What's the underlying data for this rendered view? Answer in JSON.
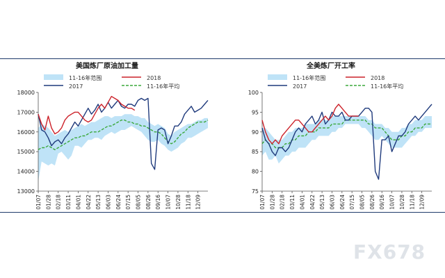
{
  "colors": {
    "range": "#bfe3f7",
    "y2018": "#cc2129",
    "y2017": "#1f3a7c",
    "avg": "#3aa83a"
  },
  "watermark": "FX678",
  "x_labels": [
    "01/07",
    "01/28",
    "02/18",
    "03/11",
    "04/01",
    "04/22",
    "05/13",
    "06/03",
    "06/24",
    "07/15",
    "08/05",
    "08/26",
    "09/16",
    "10/07",
    "10/28",
    "11/18",
    "12/09"
  ],
  "chart_data": [
    {
      "type": "line",
      "title": "美国炼厂原油加工量",
      "ylim": [
        13000,
        18000
      ],
      "yticks": [
        13000,
        14000,
        15000,
        16000,
        17000,
        18000
      ],
      "legend": [
        "11-16年范围",
        "2018",
        "2017",
        "11-16年平均"
      ],
      "n_weeks": 52,
      "range_low": [
        13500,
        14500,
        14400,
        14300,
        14400,
        14300,
        14900,
        15000,
        14800,
        14600,
        14800,
        15300,
        15300,
        15200,
        15400,
        15600,
        15600,
        15700,
        15700,
        15600,
        15800,
        15900,
        16000,
        15900,
        16000,
        16100,
        16100,
        16200,
        16300,
        16200,
        16100,
        16000,
        15800,
        15600,
        15500,
        15500,
        15600,
        15400,
        15300,
        15100,
        15000,
        15100,
        15200,
        15400,
        15500,
        15700,
        15700,
        15800,
        15900,
        16000,
        16100,
        16200
      ],
      "range_high": [
        16200,
        16400,
        16300,
        16200,
        16000,
        15800,
        15900,
        16000,
        16100,
        16000,
        16100,
        16200,
        16300,
        16400,
        16300,
        16400,
        16500,
        16500,
        16600,
        16700,
        16800,
        16800,
        16700,
        16800,
        16800,
        16800,
        16900,
        16900,
        16900,
        16800,
        16800,
        16700,
        16700,
        16500,
        16400,
        16300,
        16400,
        16300,
        16200,
        15900,
        15800,
        16000,
        16100,
        16200,
        16300,
        16400,
        16400,
        16500,
        16600,
        16600,
        16700,
        16700
      ],
      "series": [
        {
          "name": "2017",
          "x": [
            1,
            2,
            3,
            4,
            5,
            6,
            7,
            8,
            9,
            10,
            11,
            12,
            13,
            14,
            15,
            16,
            17,
            18,
            19,
            20,
            21,
            22,
            23,
            24,
            25,
            26,
            27,
            28,
            29,
            30,
            31,
            32,
            33,
            34,
            35,
            36,
            37,
            38,
            39,
            40,
            41,
            42,
            43,
            44,
            45,
            46,
            47,
            48,
            49,
            50,
            51,
            52
          ],
          "values": [
            16900,
            16100,
            16000,
            15700,
            15300,
            15500,
            15600,
            15400,
            15700,
            15900,
            16200,
            16500,
            16300,
            16600,
            16900,
            17200,
            16900,
            17100,
            17400,
            17000,
            17200,
            17500,
            17200,
            17400,
            17600,
            17300,
            17200,
            17400,
            17400,
            17300,
            17600,
            17700,
            17600,
            17700,
            14400,
            14100,
            16100,
            16200,
            16100,
            15400,
            15800,
            16300,
            16300,
            16500,
            16900,
            17100,
            17300,
            17000,
            17100,
            17200,
            17400,
            17600
          ]
        },
        {
          "name": "2018",
          "x": [
            1,
            2,
            3,
            4,
            5,
            6,
            7,
            8,
            9,
            10,
            11,
            12,
            13,
            14,
            15,
            16,
            17,
            18,
            19,
            20,
            21,
            22,
            23,
            24,
            25,
            26,
            27,
            28,
            29,
            30
          ],
          "values": [
            16900,
            16400,
            16100,
            16800,
            16200,
            15900,
            16000,
            16200,
            16600,
            16800,
            16900,
            17000,
            17000,
            16800,
            16600,
            16500,
            16600,
            16900,
            17200,
            17400,
            17200,
            17500,
            17800,
            17700,
            17600,
            17400,
            17300,
            17200,
            17200,
            17100
          ]
        },
        {
          "name": "11-16年平均",
          "x": [
            1,
            2,
            3,
            4,
            5,
            6,
            7,
            8,
            9,
            10,
            11,
            12,
            13,
            14,
            15,
            16,
            17,
            18,
            19,
            20,
            21,
            22,
            23,
            24,
            25,
            26,
            27,
            28,
            29,
            30,
            31,
            32,
            33,
            34,
            35,
            36,
            37,
            38,
            39,
            40,
            41,
            42,
            43,
            44,
            45,
            46,
            47,
            48,
            49,
            50,
            51,
            52
          ],
          "values": [
            15100,
            15200,
            15200,
            15300,
            15200,
            15100,
            15200,
            15300,
            15400,
            15500,
            15600,
            15700,
            15700,
            15800,
            15800,
            15900,
            16000,
            16000,
            16000,
            16100,
            16200,
            16300,
            16300,
            16400,
            16500,
            16600,
            16600,
            16500,
            16500,
            16400,
            16400,
            16300,
            16300,
            16200,
            16100,
            16000,
            16000,
            15900,
            15700,
            15500,
            15400,
            15500,
            15700,
            15900,
            16000,
            16200,
            16300,
            16400,
            16500,
            16500,
            16500,
            16600
          ]
        }
      ]
    },
    {
      "type": "line",
      "title": "全美炼厂开工率",
      "ylim": [
        75,
        100
      ],
      "yticks": [
        75,
        80,
        85,
        90,
        95,
        100
      ],
      "legend": [
        "11-16年范围",
        "2018",
        "2017",
        "11-16年平均"
      ],
      "n_weeks": 52,
      "range_low": [
        84,
        85,
        83,
        83,
        84,
        82,
        83,
        84,
        84,
        85,
        85,
        86,
        86,
        86,
        87,
        88,
        88,
        89,
        89,
        89,
        89,
        90,
        90,
        91,
        91,
        92,
        92,
        92,
        92,
        92,
        91,
        91,
        90,
        89,
        88,
        88,
        89,
        88,
        87,
        86,
        86,
        86,
        86,
        87,
        88,
        89,
        89,
        90,
        90,
        91,
        91,
        91
      ],
      "range_high": [
        91,
        91,
        90,
        89,
        88,
        88,
        88,
        89,
        90,
        90,
        91,
        91,
        91,
        92,
        92,
        92,
        92,
        93,
        93,
        93,
        93,
        94,
        94,
        94,
        94,
        94,
        94,
        94,
        94,
        94,
        94,
        94,
        93,
        93,
        92,
        92,
        92,
        91,
        91,
        90,
        90,
        90,
        91,
        91,
        92,
        92,
        93,
        93,
        93,
        94,
        94,
        94
      ],
      "series": [
        {
          "name": "2017",
          "x": [
            1,
            2,
            3,
            4,
            5,
            6,
            7,
            8,
            9,
            10,
            11,
            12,
            13,
            14,
            15,
            16,
            17,
            18,
            19,
            20,
            21,
            22,
            23,
            24,
            25,
            26,
            27,
            28,
            29,
            30,
            31,
            32,
            33,
            34,
            35,
            36,
            37,
            38,
            39,
            40,
            41,
            42,
            43,
            44,
            45,
            46,
            47,
            48,
            49,
            50,
            51,
            52
          ],
          "values": [
            91,
            88,
            87,
            85,
            84,
            86,
            86,
            85,
            86,
            88,
            90,
            91,
            90,
            92,
            93,
            94,
            92,
            93,
            95,
            92,
            93,
            95,
            94,
            94,
            95,
            93,
            93,
            94,
            94,
            94,
            95,
            96,
            96,
            95,
            80,
            78,
            88,
            88,
            89,
            85,
            87,
            89,
            89,
            90,
            92,
            93,
            94,
            93,
            94,
            95,
            96,
            97
          ]
        },
        {
          "name": "2018",
          "x": [
            1,
            2,
            3,
            4,
            5,
            6,
            7,
            8,
            9,
            10,
            11,
            12,
            13,
            14,
            15,
            16,
            17,
            18,
            19,
            20,
            21,
            22,
            23,
            24,
            25,
            26,
            27,
            28,
            29,
            30
          ],
          "values": [
            93,
            90,
            88,
            87,
            88,
            87,
            89,
            90,
            91,
            92,
            93,
            93,
            92,
            91,
            90,
            90,
            91,
            92,
            93,
            94,
            93,
            94,
            96,
            97,
            96,
            95,
            94,
            94,
            94,
            94
          ]
        },
        {
          "name": "11-16年平均",
          "x": [
            1,
            2,
            3,
            4,
            5,
            6,
            7,
            8,
            9,
            10,
            11,
            12,
            13,
            14,
            15,
            16,
            17,
            18,
            19,
            20,
            21,
            22,
            23,
            24,
            25,
            26,
            27,
            28,
            29,
            30,
            31,
            32,
            33,
            34,
            35,
            36,
            37,
            38,
            39,
            40,
            41,
            42,
            43,
            44,
            45,
            46,
            47,
            48,
            49,
            50,
            51,
            52
          ],
          "values": [
            87,
            88,
            87,
            87,
            86,
            86,
            86,
            87,
            87,
            88,
            88,
            89,
            89,
            89,
            90,
            90,
            90,
            91,
            91,
            91,
            91,
            92,
            92,
            92,
            92,
            93,
            93,
            93,
            93,
            93,
            93,
            93,
            92,
            92,
            91,
            91,
            91,
            90,
            89,
            88,
            88,
            88,
            89,
            89,
            90,
            90,
            91,
            91,
            91,
            92,
            92,
            92
          ]
        }
      ]
    }
  ]
}
